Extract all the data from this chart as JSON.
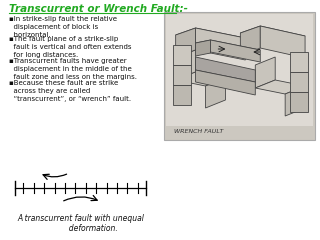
{
  "bg_color": "#ffffff",
  "title": "Transcurrent or Wrench Fault:-",
  "title_color": "#22aa22",
  "title_fontsize": 7.5,
  "bullets": [
    "▪ln strike-slip fault the relative\n  displacement of block is\n  horizontal.",
    "▪The fault plane of a strike-slip\n  fault is vertical and often extends\n  for long distances.",
    "▪Transcurrent faults have greater\n  displacement in the middle of the\n  fault zone and less on the margins.",
    "▪Because these fault are strike\n  across they are called\n  “transcurrent”, or “wrench” fault."
  ],
  "bullet_fontsize": 5.0,
  "bullet_color": "#111111",
  "caption": "A transcurrent fault with unequal\n          deformation.",
  "caption_fontsize": 5.5,
  "caption_color": "#111111",
  "diagram_label": "WRENCH FAULT",
  "diagram_label_fontsize": 4.5,
  "diagram_bg": "#d8d4cc"
}
